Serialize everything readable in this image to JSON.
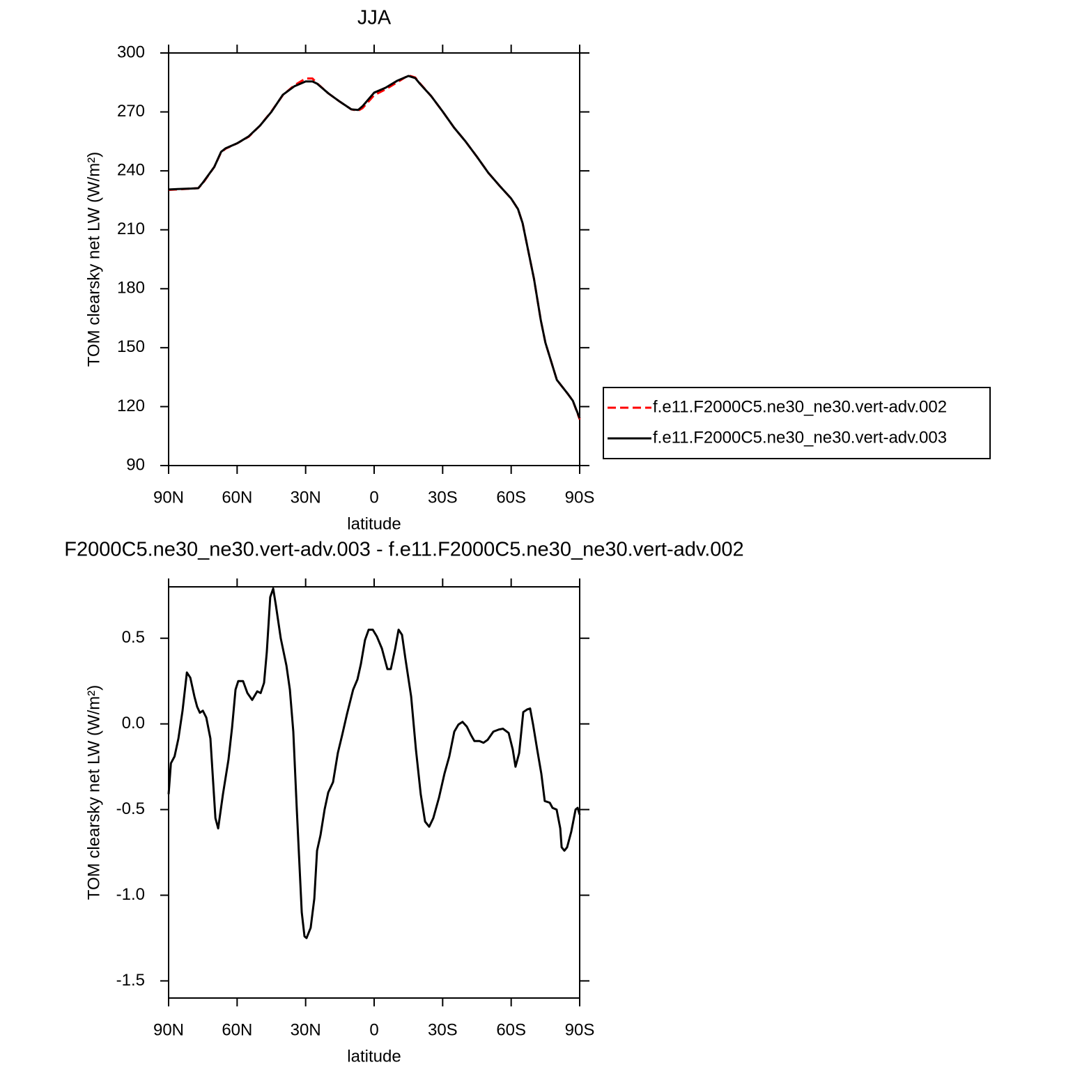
{
  "chart_data": [
    {
      "type": "line",
      "title": "JJA",
      "xlabel": "latitude",
      "ylabel": "TOM clearsky net LW (W/m²)",
      "x": [
        90,
        85,
        80,
        77,
        75,
        70,
        67,
        65,
        60,
        55,
        50,
        45,
        40,
        35,
        30,
        27,
        25,
        20,
        15,
        10,
        7,
        5,
        0,
        -5,
        -10,
        -15,
        -18,
        -20,
        -25,
        -30,
        -35,
        -40,
        -45,
        -50,
        -55,
        -60,
        -63,
        -65,
        -70,
        -73,
        -75,
        -80,
        -85,
        -87,
        -90
      ],
      "series": [
        {
          "name": "f.e11.F2000C5.ne30_ne30.vert-adv.002",
          "color": "#ff0000",
          "linestyle": "dashed",
          "values": [
            230.3,
            230.6,
            231,
            231.2,
            233.7,
            242,
            249.5,
            251.3,
            254,
            257.3,
            263,
            270.2,
            278.5,
            283.5,
            287,
            287,
            284.6,
            279.4,
            275.2,
            271.3,
            270.6,
            272,
            278.5,
            281.5,
            285,
            288.6,
            287.5,
            284.6,
            278,
            270.2,
            262,
            255,
            247.2,
            239,
            232.3,
            225.9,
            220.5,
            213.4,
            185,
            163.8,
            152.5,
            133.6,
            126.2,
            123,
            113.5
          ]
        },
        {
          "name": "f.e11.F2000C5.ne30_ne30.vert-adv.003",
          "color": "#000000",
          "linestyle": "solid",
          "values": [
            230.5,
            230.8,
            231,
            231.2,
            234,
            242,
            249.7,
            251.5,
            254,
            257.5,
            263,
            270,
            278.7,
            283,
            285.5,
            285.5,
            284.4,
            279.4,
            275.2,
            271.3,
            271,
            273,
            279.8,
            282.3,
            285.8,
            288.3,
            287.2,
            284.4,
            278,
            270.2,
            262,
            255,
            247.2,
            239,
            232.3,
            225.9,
            220.5,
            213.4,
            185,
            163.8,
            152.5,
            133.6,
            126.2,
            123,
            114
          ]
        }
      ],
      "xlim": [
        90,
        -90
      ],
      "ylim": [
        90,
        300
      ],
      "xticks": [
        {
          "value": 90,
          "label": "90N"
        },
        {
          "value": 60,
          "label": "60N"
        },
        {
          "value": 30,
          "label": "30N"
        },
        0,
        {
          "value": -30,
          "label": "30S"
        },
        {
          "value": -60,
          "label": "60S"
        },
        {
          "value": -90,
          "label": "90S"
        }
      ],
      "yticks": [
        90,
        120,
        150,
        180,
        210,
        240,
        270,
        300
      ],
      "legend": "right"
    },
    {
      "type": "line",
      "title": "F2000C5.ne30_ne30.vert-adv.003 - f.e11.F2000C5.ne30_ne30.vert-adv.002",
      "xlabel": "latitude",
      "ylabel": "TOM clearsky net LW (W/m²)",
      "x": [
        90,
        89,
        87.4,
        85.7,
        83.9,
        82,
        80.5,
        78.7,
        77.5,
        76.3,
        75,
        73.5,
        71.7,
        69.5,
        68.3,
        66.2,
        63.8,
        62.2,
        60.7,
        59.5,
        57.4,
        55.5,
        53.4,
        51.2,
        49.7,
        48.2,
        47,
        45.5,
        44.2,
        43,
        40.9,
        38.4,
        36.9,
        35.4,
        33.9,
        31.7,
        30.5,
        29.6,
        27.8,
        26.2,
        25,
        23.5,
        21.7,
        20.1,
        18,
        15.9,
        14,
        11.9,
        9.2,
        7.3,
        5.8,
        4,
        2.4,
        0.6,
        -1.2,
        -3.4,
        -5.8,
        -7.3,
        -9.2,
        -10.7,
        -12.2,
        -13.7,
        -16.2,
        -18.3,
        -20.4,
        -22.3,
        -24.1,
        -25.9,
        -28.4,
        -30.8,
        -32.9,
        -35.1,
        -36.9,
        -38.7,
        -40.6,
        -42.4,
        -43.9,
        -46.1,
        -47.9,
        -49.7,
        -52.2,
        -54.6,
        -56.4,
        -58.9,
        -60.7,
        -61.9,
        -63.5,
        -65.3,
        -67.1,
        -68.3,
        -69.6,
        -71.4,
        -73.2,
        -74.7,
        -76.9,
        -78.1,
        -79.9,
        -81.5,
        -82.1,
        -83.3,
        -84.5,
        -86.3,
        -88.2,
        -89.1,
        -90
      ],
      "series": [
        {
          "color": "#000000",
          "linestyle": "solid",
          "values": [
            -0.41,
            -0.23,
            -0.19,
            -0.085,
            0.077,
            0.3,
            0.27,
            0.16,
            0.1,
            0.065,
            0.077,
            0.037,
            -0.085,
            -0.55,
            -0.61,
            -0.41,
            -0.21,
            -0.02,
            0.2,
            0.25,
            0.25,
            0.18,
            0.14,
            0.19,
            0.18,
            0.24,
            0.42,
            0.74,
            0.79,
            0.69,
            0.5,
            0.34,
            0.2,
            -0.045,
            -0.49,
            -1.1,
            -1.24,
            -1.25,
            -1.19,
            -1.02,
            -0.74,
            -0.65,
            -0.5,
            -0.4,
            -0.34,
            -0.17,
            -0.065,
            0.057,
            0.2,
            0.26,
            0.35,
            0.49,
            0.55,
            0.55,
            0.51,
            0.44,
            0.32,
            0.32,
            0.44,
            0.55,
            0.52,
            0.38,
            0.16,
            -0.15,
            -0.41,
            -0.57,
            -0.6,
            -0.55,
            -0.43,
            -0.29,
            -0.19,
            -0.045,
            -0.004,
            0.012,
            -0.016,
            -0.065,
            -0.1,
            -0.1,
            -0.11,
            -0.093,
            -0.045,
            -0.033,
            -0.028,
            -0.053,
            -0.15,
            -0.25,
            -0.17,
            0.069,
            0.085,
            0.09,
            -0.004,
            -0.15,
            -0.29,
            -0.45,
            -0.46,
            -0.49,
            -0.5,
            -0.61,
            -0.72,
            -0.74,
            -0.72,
            -0.63,
            -0.5,
            -0.49,
            -0.53
          ]
        }
      ],
      "xlim": [
        90,
        -90
      ],
      "ylim": [
        -1.6,
        0.8
      ],
      "xticks": [
        {
          "value": 90,
          "label": "90N"
        },
        {
          "value": 60,
          "label": "60N"
        },
        {
          "value": 30,
          "label": "30N"
        },
        0,
        {
          "value": -30,
          "label": "30S"
        },
        {
          "value": -60,
          "label": "60S"
        },
        {
          "value": -90,
          "label": "90S"
        }
      ],
      "yticks": [
        -1.5,
        {
          "value": -1.0,
          "label": "-1.0"
        },
        -0.5,
        {
          "value": 0.0,
          "label": "0.0"
        },
        0.5
      ]
    }
  ]
}
